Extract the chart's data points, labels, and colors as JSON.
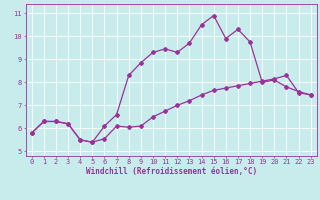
{
  "xlabel": "Windchill (Refroidissement éolien,°C)",
  "background_color": "#c8ecec",
  "grid_color": "#ffffff",
  "line_color": "#993399",
  "xlim": [
    -0.5,
    23.5
  ],
  "ylim": [
    4.8,
    11.4
  ],
  "xticks": [
    0,
    1,
    2,
    3,
    4,
    5,
    6,
    7,
    8,
    9,
    10,
    11,
    12,
    13,
    14,
    15,
    16,
    17,
    18,
    19,
    20,
    21,
    22,
    23
  ],
  "yticks": [
    5,
    6,
    7,
    8,
    9,
    10,
    11
  ],
  "line1_x": [
    0,
    1,
    2,
    3,
    4,
    5,
    6,
    7,
    8,
    9,
    10,
    11,
    12,
    13,
    14,
    15,
    16,
    17,
    18,
    19,
    20,
    21,
    22,
    23
  ],
  "line1_y": [
    5.8,
    6.3,
    6.3,
    6.2,
    5.5,
    5.4,
    5.55,
    6.1,
    6.05,
    6.1,
    6.5,
    6.75,
    7.0,
    7.2,
    7.45,
    7.65,
    7.75,
    7.85,
    7.95,
    8.05,
    8.15,
    8.3,
    7.55,
    7.45
  ],
  "line2_x": [
    0,
    1,
    2,
    3,
    4,
    5,
    6,
    7,
    8,
    9,
    10,
    11,
    12,
    13,
    14,
    15,
    16,
    17,
    18,
    19,
    20,
    21,
    22,
    23
  ],
  "line2_y": [
    5.8,
    6.3,
    6.3,
    6.2,
    5.5,
    5.4,
    6.1,
    6.6,
    8.3,
    8.85,
    9.3,
    9.45,
    9.3,
    9.7,
    10.5,
    10.9,
    9.9,
    10.3,
    9.75,
    8.0,
    8.1,
    7.8,
    7.6,
    7.45
  ],
  "marker": "D",
  "markersize": 2.0,
  "linewidth": 0.9,
  "tick_fontsize": 5.0,
  "label_fontsize": 5.5,
  "figwidth": 3.2,
  "figheight": 2.0,
  "dpi": 100
}
